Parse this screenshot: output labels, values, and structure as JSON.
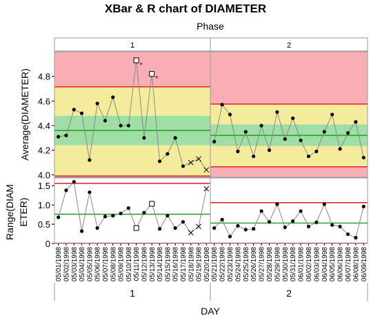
{
  "title": "XBar & R chart of DIAMETER",
  "phase_axis_label": "Phase",
  "x_axis_label": "DAY",
  "chart_data": [
    {
      "type": "line",
      "ylabel": "Average(DIAMETER)",
      "ylim": [
        3.98,
        5.0
      ],
      "yticks": [
        "4.0",
        "4.2",
        "4.4",
        "4.6",
        "4.8"
      ],
      "ytick_values": [
        4.0,
        4.2,
        4.4,
        4.6,
        4.8
      ],
      "phases": [
        {
          "name": "1",
          "x": [
            "05/01/1998",
            "05/02/1998",
            "05/03/1998",
            "05/04/1998",
            "05/05/1998",
            "05/06/1998",
            "05/07/1998",
            "05/08/1998",
            "05/09/1998",
            "05/10/1998",
            "05/11/1998",
            "05/12/1998",
            "05/13/1998",
            "05/14/1998",
            "05/15/1998",
            "05/16/1998",
            "05/17/1998",
            "05/18/1998",
            "05/19/1998",
            "05/20/1998"
          ],
          "values": [
            4.31,
            4.32,
            4.53,
            4.5,
            4.12,
            4.58,
            4.44,
            4.63,
            4.4,
            4.4,
            4.93,
            4.3,
            4.82,
            4.11,
            4.17,
            4.3,
            4.07,
            4.1,
            4.13,
            4.04
          ],
          "markers": [
            "dot",
            "dot",
            "dot",
            "dot",
            "dot",
            "dot",
            "dot",
            "dot",
            "dot",
            "dot",
            "square",
            "dot",
            "square",
            "dot",
            "dot",
            "dot",
            "dot",
            "x",
            "x",
            "x"
          ],
          "flags": [
            "",
            "",
            "",
            "",
            "",
            "",
            "",
            "",
            "",
            "",
            "*",
            "",
            "*",
            "",
            "",
            "",
            "",
            "",
            "",
            ""
          ],
          "ucl": 4.715,
          "cl": 4.36,
          "lcl": 3.99,
          "zone_a_upper": 4.715,
          "zone_b_upper": 4.48,
          "zone_c_upper": 4.48,
          "zone_c_lower": 4.24,
          "zone_b_lower": 4.24
        },
        {
          "name": "2",
          "x": [
            "05/21/1998",
            "05/22/1998",
            "05/23/1998",
            "05/24/1998",
            "05/25/1998",
            "05/26/1998",
            "05/27/1998",
            "05/28/1998",
            "05/29/1998",
            "05/30/1998",
            "05/31/1998",
            "06/01/1998",
            "06/02/1998",
            "06/03/1998",
            "06/04/1998",
            "06/05/1998",
            "06/06/1998",
            "06/07/1998",
            "06/08/1998",
            "06/09/1998"
          ],
          "values": [
            4.27,
            4.57,
            4.49,
            4.19,
            4.35,
            4.15,
            4.4,
            4.2,
            4.51,
            4.29,
            4.46,
            4.28,
            4.15,
            4.19,
            4.35,
            4.49,
            4.21,
            4.34,
            4.43,
            4.14
          ],
          "markers": [
            "dot",
            "dot",
            "dot",
            "dot",
            "dot",
            "dot",
            "dot",
            "dot",
            "dot",
            "dot",
            "dot",
            "dot",
            "dot",
            "dot",
            "dot",
            "dot",
            "dot",
            "dot",
            "dot",
            "dot"
          ],
          "flags": [
            "",
            "",
            "",
            "",
            "",
            "",
            "",
            "",
            "",
            "",
            "",
            "",
            "",
            "",
            "",
            "",
            "",
            "",
            "",
            ""
          ],
          "ucl": 4.575,
          "cl": 4.32,
          "lcl": 4.065,
          "zone_a_upper": 4.575,
          "zone_b_upper": 4.41,
          "zone_c_upper": 4.41,
          "zone_c_lower": 4.235,
          "zone_b_lower": 4.235
        }
      ],
      "zone_colors": {
        "a": "#f8aeb4",
        "b": "#f4ec9c",
        "c": "#9fdea4"
      }
    },
    {
      "type": "line",
      "ylabel": "Range(DIAMETER)",
      "ylim": [
        0,
        1.7
      ],
      "yticks": [
        "0",
        "0.5",
        "1.0",
        "1.5"
      ],
      "ytick_values": [
        0,
        0.5,
        1.0,
        1.5
      ],
      "phases": [
        {
          "name": "1",
          "values": [
            0.68,
            1.38,
            1.6,
            0.32,
            1.33,
            0.4,
            0.7,
            0.72,
            0.78,
            0.92,
            0.4,
            0.8,
            1.03,
            0.38,
            0.72,
            0.4,
            0.56,
            0.28,
            0.44,
            1.42
          ],
          "markers": [
            "dot",
            "dot",
            "dot",
            "dot",
            "dot",
            "dot",
            "dot",
            "dot",
            "dot",
            "dot",
            "square",
            "dot",
            "square",
            "dot",
            "dot",
            "dot",
            "dot",
            "x",
            "x",
            "x"
          ],
          "ucl": 1.56,
          "cl": 0.76,
          "lcl": 0
        },
        {
          "name": "2",
          "values": [
            0.4,
            0.62,
            0.18,
            0.46,
            0.36,
            0.38,
            0.84,
            0.56,
            1.02,
            0.42,
            0.58,
            0.84,
            0.44,
            0.55,
            1.02,
            0.48,
            0.44,
            0.24,
            0.15,
            0.96
          ],
          "markers": [
            "dot",
            "dot",
            "dot",
            "dot",
            "dot",
            "dot",
            "dot",
            "dot",
            "dot",
            "dot",
            "dot",
            "dot",
            "dot",
            "dot",
            "dot",
            "dot",
            "dot",
            "dot",
            "dot",
            "dot"
          ],
          "ucl": 1.06,
          "cl": 0.53,
          "lcl": 0
        }
      ]
    }
  ],
  "colors": {
    "limit": "#e8282c",
    "center": "#2ca02c",
    "series": "#888888",
    "point": "#000000"
  }
}
